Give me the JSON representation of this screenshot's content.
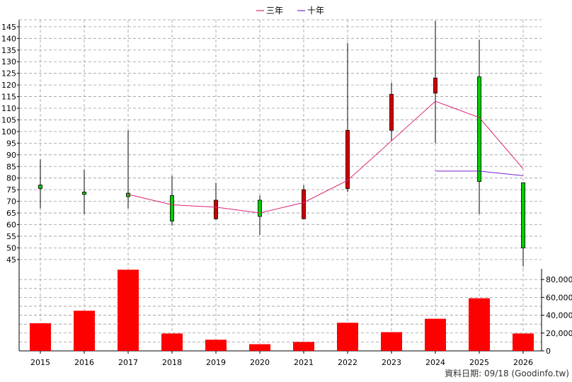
{
  "chart_data": [
    {
      "type": "candlestick",
      "legend": [
        {
          "name": "三年",
          "color": "#dd2277"
        },
        {
          "name": "十年",
          "color": "#7722cc"
        }
      ],
      "legend_position": "top-center",
      "grid": true,
      "ylim": [
        41,
        148
      ],
      "yticks": [
        45,
        50,
        55,
        60,
        65,
        70,
        75,
        80,
        85,
        90,
        95,
        100,
        105,
        110,
        115,
        120,
        125,
        130,
        135,
        140,
        145
      ],
      "categories": [
        "2015",
        "2016",
        "2017",
        "2018",
        "2019",
        "2020",
        "2021",
        "2022",
        "2023",
        "2024",
        "2025",
        "2026"
      ],
      "candles": [
        {
          "year": "2015",
          "open": 75.5,
          "high": 88,
          "low": 67,
          "close": 77,
          "color": "green"
        },
        {
          "year": "2016",
          "open": 73,
          "high": 83.5,
          "low": 64.5,
          "close": 74,
          "color": "green"
        },
        {
          "year": "2017",
          "open": 72,
          "high": 100.5,
          "low": 67,
          "close": 73.5,
          "color": "green"
        },
        {
          "year": "2018",
          "open": 61.5,
          "high": 81,
          "low": 59.5,
          "close": 72.5,
          "color": "green"
        },
        {
          "year": "2019",
          "open": 70.5,
          "high": 78,
          "low": 62,
          "close": 62.5,
          "color": "red"
        },
        {
          "year": "2020",
          "open": 63.5,
          "high": 72.5,
          "low": 55.5,
          "close": 70.5,
          "color": "green"
        },
        {
          "year": "2021",
          "open": 75,
          "high": 77,
          "low": 62.5,
          "close": 62.5,
          "color": "red"
        },
        {
          "year": "2022",
          "open": 100.5,
          "high": 138,
          "low": 74,
          "close": 75.5,
          "color": "red"
        },
        {
          "year": "2023",
          "open": 116,
          "high": 121,
          "low": 96,
          "close": 100.5,
          "color": "red"
        },
        {
          "year": "2024",
          "open": 123,
          "high": 147.5,
          "low": 95,
          "close": 116.5,
          "color": "red"
        },
        {
          "year": "2025",
          "open": 78.5,
          "high": 139.5,
          "low": 64.5,
          "close": 123.5,
          "color": "green"
        },
        {
          "year": "2026",
          "open": 50,
          "high": 78,
          "low": 42,
          "close": 78,
          "color": "green"
        }
      ],
      "series": [
        {
          "name": "三年",
          "x": [
            "2017",
            "2018",
            "2019",
            "2020",
            "2021",
            "2022",
            "2023",
            "2024",
            "2025",
            "2026"
          ],
          "values": [
            73,
            68.5,
            67.5,
            65,
            69.5,
            79,
            96,
            113,
            106,
            84
          ]
        },
        {
          "name": "十年",
          "x": [
            "2024",
            "2025",
            "2026"
          ],
          "values": [
            83,
            83,
            81
          ]
        }
      ]
    },
    {
      "type": "bar",
      "categories": [
        "2015",
        "2016",
        "2017",
        "2018",
        "2019",
        "2020",
        "2021",
        "2022",
        "2023",
        "2024",
        "2025",
        "2026"
      ],
      "values": [
        31000,
        45000,
        91000,
        19500,
        12500,
        7500,
        10000,
        31500,
        21000,
        36000,
        59000,
        19500
      ],
      "color": "#ff0000",
      "ylim": [
        0,
        92000
      ],
      "yticks": [
        0,
        20000,
        40000,
        60000,
        80000
      ],
      "ytick_labels": [
        "0",
        "20,000",
        "40,000",
        "60,000",
        "80,000"
      ],
      "grid": true
    }
  ],
  "footer": "資料日期: 09/18  (Goodinfo.tw)"
}
